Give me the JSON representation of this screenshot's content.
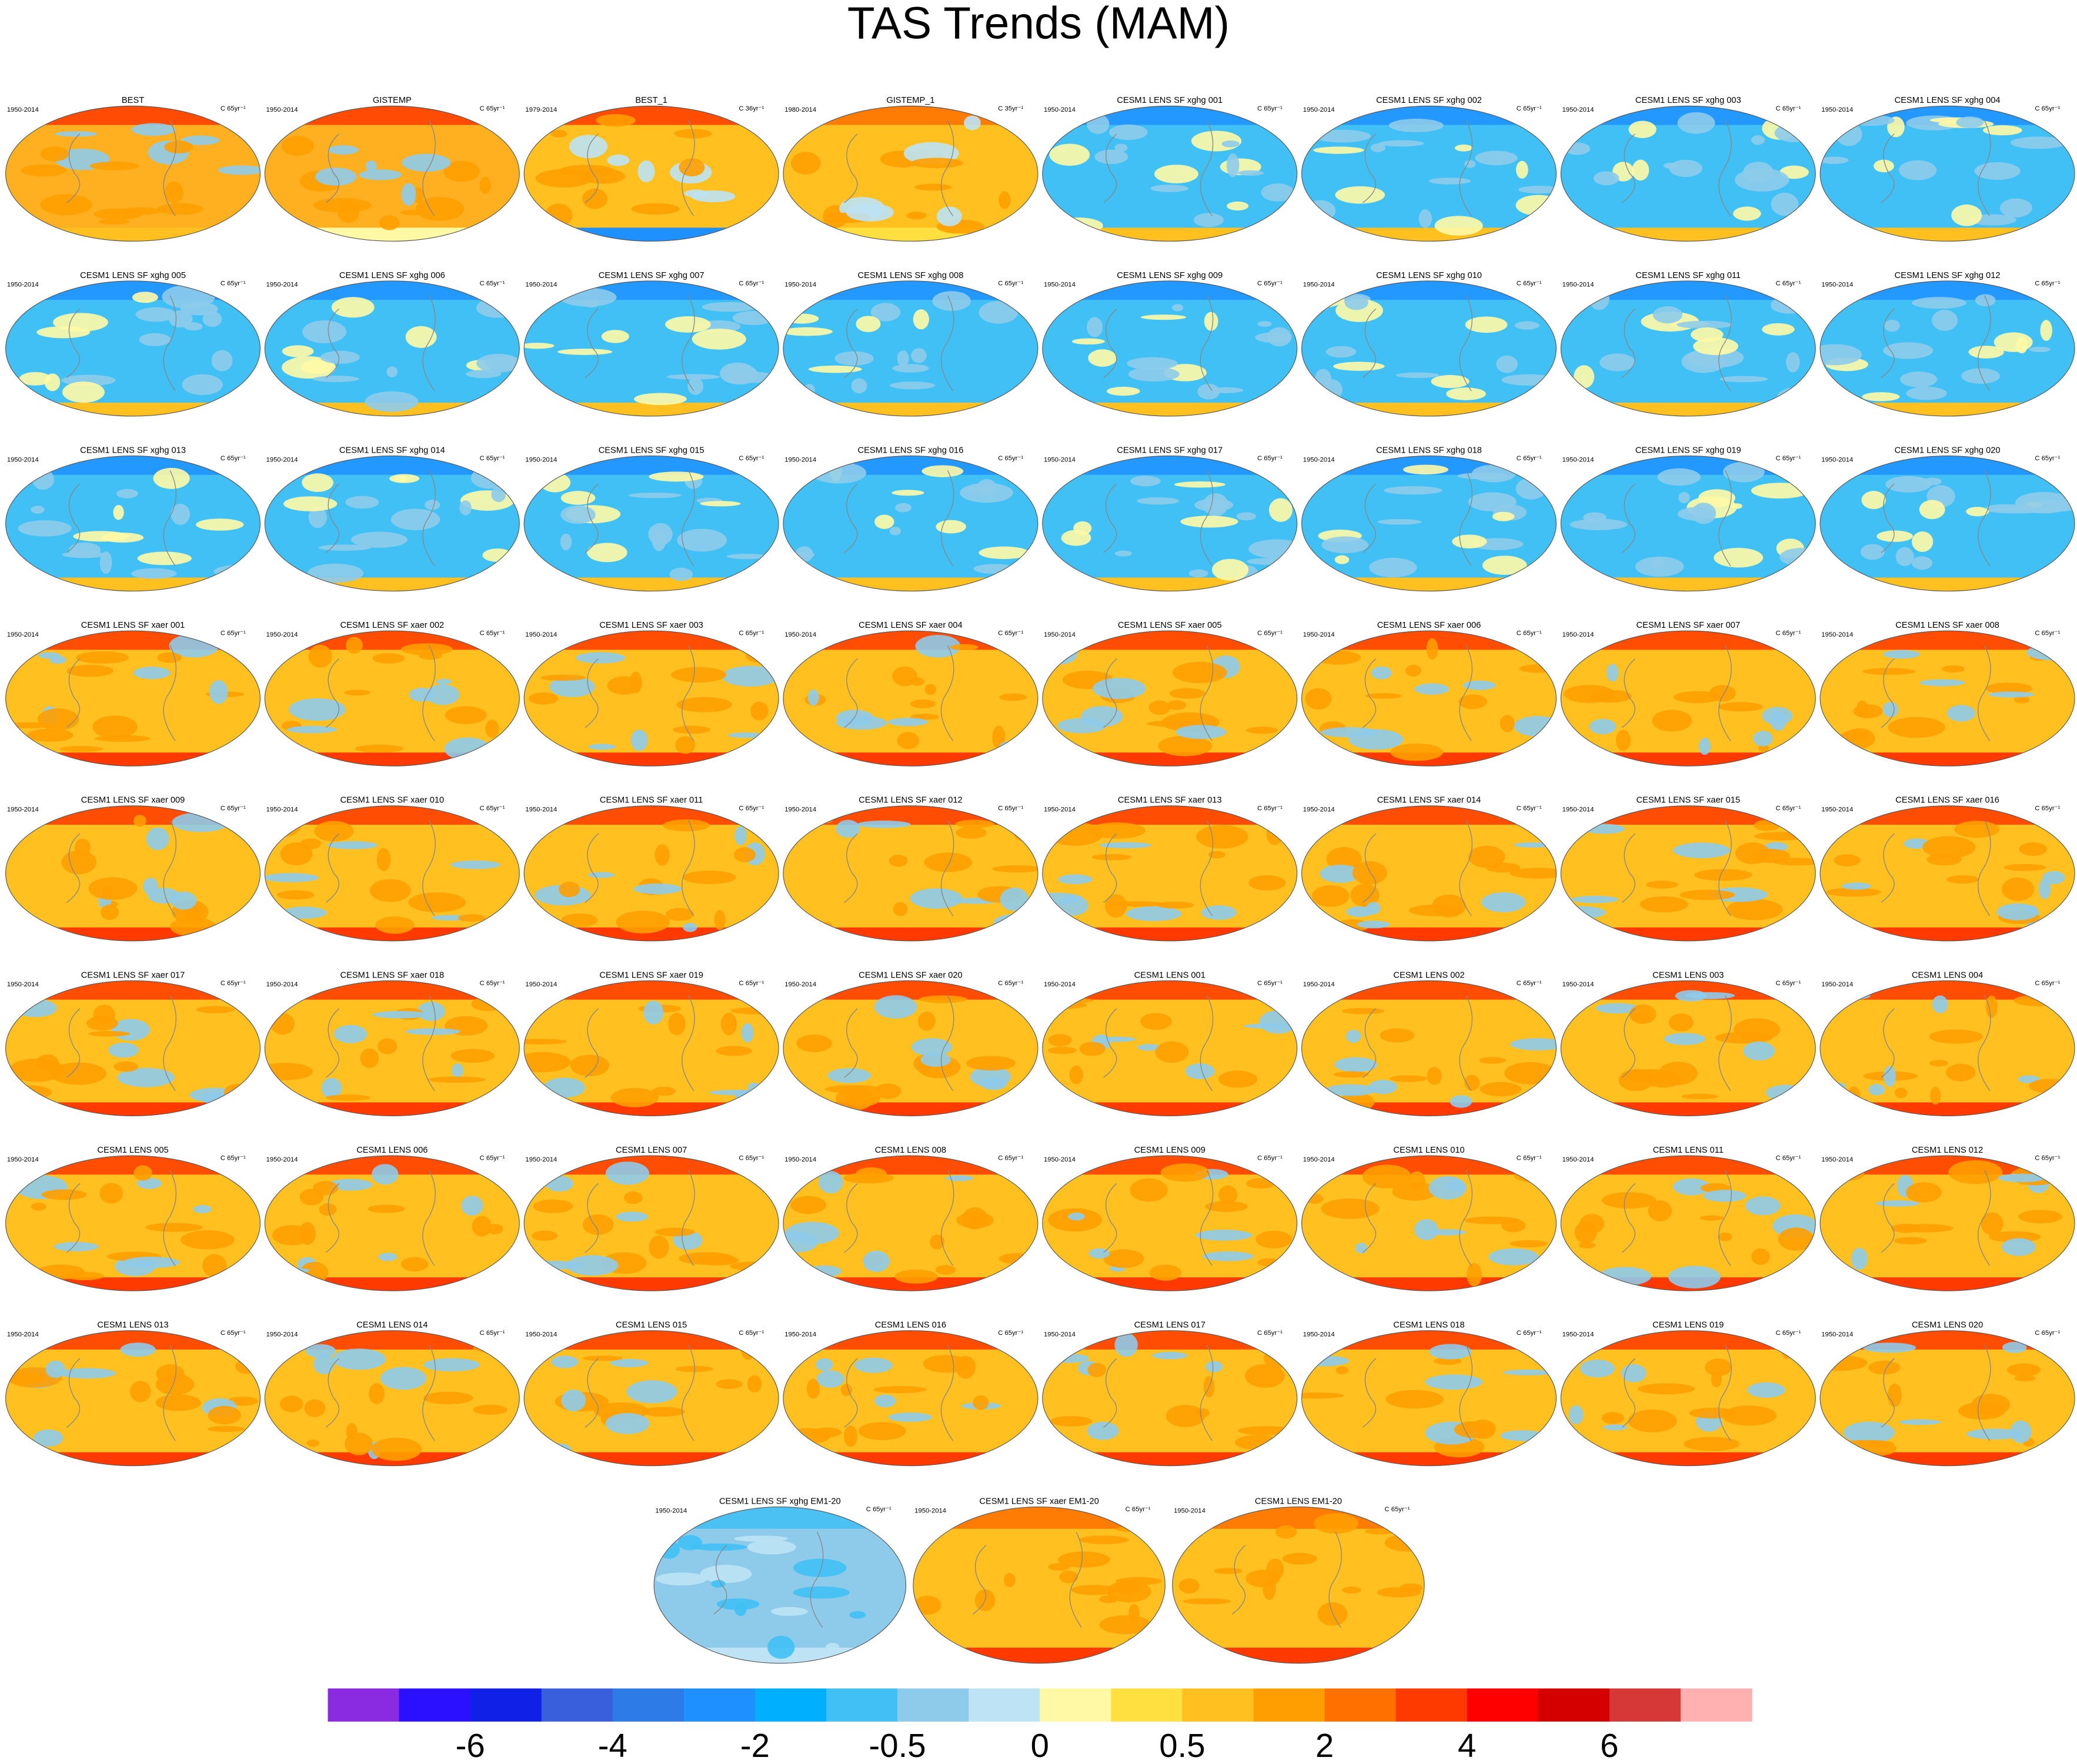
{
  "title": "TAS Trends (MAM)",
  "panels": [
    {
      "title": "BEST",
      "period": "1950-2014",
      "units": "C 65yr⁻¹",
      "colors": [
        "#ffb020",
        "#ff9e00",
        "#ff3a00",
        "#ffc020",
        "#8ecbeb"
      ]
    },
    {
      "title": "GISTEMP",
      "period": "1950-2014",
      "units": "C 65yr⁻¹",
      "colors": [
        "#ffb020",
        "#ff9e00",
        "#ff3a00",
        "#fff9a6",
        "#8ecbeb"
      ]
    },
    {
      "title": "BEST_1",
      "period": "1979-2014",
      "units": "C 36yr⁻¹",
      "colors": [
        "#ffc020",
        "#ff9e00",
        "#ff3a00",
        "#1e90ff",
        "#bde3f5"
      ]
    },
    {
      "title": "GISTEMP_1",
      "period": "1980-2014",
      "units": "C 35yr⁻¹",
      "colors": [
        "#ffc020",
        "#ff9e00",
        "#ff7000",
        "#ffe040",
        "#bde3f5"
      ]
    },
    {
      "title": "CESM1 LENS SF xghg 001",
      "period": "1950-2014",
      "units": "C 65yr⁻¹",
      "colors": [
        "#40c0f5",
        "#8ecbeb",
        "#1e90ff",
        "#ffc020",
        "#fff9a6"
      ]
    },
    {
      "title": "CESM1 LENS SF xghg 002",
      "period": "1950-2014",
      "units": "C 65yr⁻¹",
      "colors": [
        "#40c0f5",
        "#8ecbeb",
        "#1e90ff",
        "#ffc020",
        "#fff9a6"
      ]
    },
    {
      "title": "CESM1 LENS SF xghg 003",
      "period": "1950-2014",
      "units": "C 65yr⁻¹",
      "colors": [
        "#40c0f5",
        "#8ecbeb",
        "#1e90ff",
        "#ffc020",
        "#fff9a6"
      ]
    },
    {
      "title": "CESM1 LENS SF xghg 004",
      "period": "1950-2014",
      "units": "C 65yr⁻¹",
      "colors": [
        "#40c0f5",
        "#8ecbeb",
        "#1e90ff",
        "#ffc020",
        "#fff9a6"
      ]
    },
    {
      "title": "CESM1 LENS SF xghg 005",
      "period": "1950-2014",
      "units": "C 65yr⁻¹",
      "colors": [
        "#40c0f5",
        "#8ecbeb",
        "#1e90ff",
        "#ffc020",
        "#fff9a6"
      ]
    },
    {
      "title": "CESM1 LENS SF xghg 006",
      "period": "1950-2014",
      "units": "C 65yr⁻¹",
      "colors": [
        "#40c0f5",
        "#8ecbeb",
        "#1e90ff",
        "#ffc020",
        "#fff9a6"
      ]
    },
    {
      "title": "CESM1 LENS SF xghg 007",
      "period": "1950-2014",
      "units": "C 65yr⁻¹",
      "colors": [
        "#40c0f5",
        "#8ecbeb",
        "#1e90ff",
        "#ffc020",
        "#fff9a6"
      ]
    },
    {
      "title": "CESM1 LENS SF xghg 008",
      "period": "1950-2014",
      "units": "C 65yr⁻¹",
      "colors": [
        "#40c0f5",
        "#8ecbeb",
        "#1e90ff",
        "#ffc020",
        "#fff9a6"
      ]
    },
    {
      "title": "CESM1 LENS SF xghg 009",
      "period": "1950-2014",
      "units": "C 65yr⁻¹",
      "colors": [
        "#40c0f5",
        "#8ecbeb",
        "#1e90ff",
        "#ffc020",
        "#fff9a6"
      ]
    },
    {
      "title": "CESM1 LENS SF xghg 010",
      "period": "1950-2014",
      "units": "C 65yr⁻¹",
      "colors": [
        "#40c0f5",
        "#8ecbeb",
        "#1e90ff",
        "#ffc020",
        "#fff9a6"
      ]
    },
    {
      "title": "CESM1 LENS SF xghg 011",
      "period": "1950-2014",
      "units": "C 65yr⁻¹",
      "colors": [
        "#40c0f5",
        "#8ecbeb",
        "#1e90ff",
        "#ffc020",
        "#fff9a6"
      ]
    },
    {
      "title": "CESM1 LENS SF xghg 012",
      "period": "1950-2014",
      "units": "C 65yr⁻¹",
      "colors": [
        "#40c0f5",
        "#8ecbeb",
        "#1e90ff",
        "#ffc020",
        "#fff9a6"
      ]
    },
    {
      "title": "CESM1 LENS SF xghg 013",
      "period": "1950-2014",
      "units": "C 65yr⁻¹",
      "colors": [
        "#40c0f5",
        "#8ecbeb",
        "#1e90ff",
        "#ffc020",
        "#fff9a6"
      ]
    },
    {
      "title": "CESM1 LENS SF xghg 014",
      "period": "1950-2014",
      "units": "C 65yr⁻¹",
      "colors": [
        "#40c0f5",
        "#8ecbeb",
        "#1e90ff",
        "#ffc020",
        "#fff9a6"
      ]
    },
    {
      "title": "CESM1 LENS SF xghg 015",
      "period": "1950-2014",
      "units": "C 65yr⁻¹",
      "colors": [
        "#40c0f5",
        "#8ecbeb",
        "#1e90ff",
        "#ffc020",
        "#fff9a6"
      ]
    },
    {
      "title": "CESM1 LENS SF xghg 016",
      "period": "1950-2014",
      "units": "C 65yr⁻¹",
      "colors": [
        "#40c0f5",
        "#8ecbeb",
        "#1e90ff",
        "#ffc020",
        "#fff9a6"
      ]
    },
    {
      "title": "CESM1 LENS SF xghg 017",
      "period": "1950-2014",
      "units": "C 65yr⁻¹",
      "colors": [
        "#40c0f5",
        "#8ecbeb",
        "#1e90ff",
        "#ffc020",
        "#fff9a6"
      ]
    },
    {
      "title": "CESM1 LENS SF xghg 018",
      "period": "1950-2014",
      "units": "C 65yr⁻¹",
      "colors": [
        "#40c0f5",
        "#8ecbeb",
        "#1e90ff",
        "#ffc020",
        "#fff9a6"
      ]
    },
    {
      "title": "CESM1 LENS SF xghg 019",
      "period": "1950-2014",
      "units": "C 65yr⁻¹",
      "colors": [
        "#40c0f5",
        "#8ecbeb",
        "#1e90ff",
        "#ffc020",
        "#fff9a6"
      ]
    },
    {
      "title": "CESM1 LENS SF xghg 020",
      "period": "1950-2014",
      "units": "C 65yr⁻¹",
      "colors": [
        "#40c0f5",
        "#8ecbeb",
        "#1e90ff",
        "#ffc020",
        "#fff9a6"
      ]
    },
    {
      "title": "CESM1 LENS SF xaer 001",
      "period": "1950-2014",
      "units": "C 65yr⁻¹",
      "colors": [
        "#ffc020",
        "#ff9e00",
        "#ff3a00",
        "#ff3a00",
        "#8ecbeb"
      ]
    },
    {
      "title": "CESM1 LENS SF xaer 002",
      "period": "1950-2014",
      "units": "C 65yr⁻¹",
      "colors": [
        "#ffc020",
        "#ff9e00",
        "#ff3a00",
        "#ff3a00",
        "#8ecbeb"
      ]
    },
    {
      "title": "CESM1 LENS SF xaer 003",
      "period": "1950-2014",
      "units": "C 65yr⁻¹",
      "colors": [
        "#ffc020",
        "#ff9e00",
        "#ff3a00",
        "#ff3a00",
        "#8ecbeb"
      ]
    },
    {
      "title": "CESM1 LENS SF xaer 004",
      "period": "1950-2014",
      "units": "C 65yr⁻¹",
      "colors": [
        "#ffc020",
        "#ff9e00",
        "#ff3a00",
        "#ff3a00",
        "#8ecbeb"
      ]
    },
    {
      "title": "CESM1 LENS SF xaer 005",
      "period": "1950-2014",
      "units": "C 65yr⁻¹",
      "colors": [
        "#ffc020",
        "#ff9e00",
        "#ff3a00",
        "#ff3a00",
        "#8ecbeb"
      ]
    },
    {
      "title": "CESM1 LENS SF xaer 006",
      "period": "1950-2014",
      "units": "C 65yr⁻¹",
      "colors": [
        "#ffc020",
        "#ff9e00",
        "#ff3a00",
        "#ff3a00",
        "#8ecbeb"
      ]
    },
    {
      "title": "CESM1 LENS SF xaer 007",
      "period": "1950-2014",
      "units": "C 65yr⁻¹",
      "colors": [
        "#ffc020",
        "#ff9e00",
        "#ff3a00",
        "#ff3a00",
        "#8ecbeb"
      ]
    },
    {
      "title": "CESM1 LENS SF xaer 008",
      "period": "1950-2014",
      "units": "C 65yr⁻¹",
      "colors": [
        "#ffc020",
        "#ff9e00",
        "#ff3a00",
        "#ff3a00",
        "#8ecbeb"
      ]
    },
    {
      "title": "CESM1 LENS SF xaer 009",
      "period": "1950-2014",
      "units": "C 65yr⁻¹",
      "colors": [
        "#ffc020",
        "#ff9e00",
        "#ff3a00",
        "#ff3a00",
        "#8ecbeb"
      ]
    },
    {
      "title": "CESM1 LENS SF xaer 010",
      "period": "1950-2014",
      "units": "C 65yr⁻¹",
      "colors": [
        "#ffc020",
        "#ff9e00",
        "#ff3a00",
        "#ff3a00",
        "#8ecbeb"
      ]
    },
    {
      "title": "CESM1 LENS SF xaer 011",
      "period": "1950-2014",
      "units": "C 65yr⁻¹",
      "colors": [
        "#ffc020",
        "#ff9e00",
        "#ff3a00",
        "#ff3a00",
        "#8ecbeb"
      ]
    },
    {
      "title": "CESM1 LENS SF xaer 012",
      "period": "1950-2014",
      "units": "C 65yr⁻¹",
      "colors": [
        "#ffc020",
        "#ff9e00",
        "#ff3a00",
        "#ff3a00",
        "#8ecbeb"
      ]
    },
    {
      "title": "CESM1 LENS SF xaer 013",
      "period": "1950-2014",
      "units": "C 65yr⁻¹",
      "colors": [
        "#ffc020",
        "#ff9e00",
        "#ff3a00",
        "#ff3a00",
        "#8ecbeb"
      ]
    },
    {
      "title": "CESM1 LENS SF xaer 014",
      "period": "1950-2014",
      "units": "C 65yr⁻¹",
      "colors": [
        "#ffc020",
        "#ff9e00",
        "#ff3a00",
        "#ff3a00",
        "#8ecbeb"
      ]
    },
    {
      "title": "CESM1 LENS SF xaer 015",
      "period": "1950-2014",
      "units": "C 65yr⁻¹",
      "colors": [
        "#ffc020",
        "#ff9e00",
        "#ff3a00",
        "#ff3a00",
        "#8ecbeb"
      ]
    },
    {
      "title": "CESM1 LENS SF xaer 016",
      "period": "1950-2014",
      "units": "C 65yr⁻¹",
      "colors": [
        "#ffc020",
        "#ff9e00",
        "#ff3a00",
        "#ff3a00",
        "#8ecbeb"
      ]
    },
    {
      "title": "CESM1 LENS SF xaer 017",
      "period": "1950-2014",
      "units": "C 65yr⁻¹",
      "colors": [
        "#ffc020",
        "#ff9e00",
        "#ff3a00",
        "#ff3a00",
        "#8ecbeb"
      ]
    },
    {
      "title": "CESM1 LENS SF xaer 018",
      "period": "1950-2014",
      "units": "C 65yr⁻¹",
      "colors": [
        "#ffc020",
        "#ff9e00",
        "#ff3a00",
        "#ff3a00",
        "#8ecbeb"
      ]
    },
    {
      "title": "CESM1 LENS SF xaer 019",
      "period": "1950-2014",
      "units": "C 65yr⁻¹",
      "colors": [
        "#ffc020",
        "#ff9e00",
        "#ff3a00",
        "#ff3a00",
        "#8ecbeb"
      ]
    },
    {
      "title": "CESM1 LENS SF xaer 020",
      "period": "1950-2014",
      "units": "C 65yr⁻¹",
      "colors": [
        "#ffc020",
        "#ff9e00",
        "#ff3a00",
        "#ff3a00",
        "#8ecbeb"
      ]
    },
    {
      "title": "CESM1 LENS 001",
      "period": "1950-2014",
      "units": "C 65yr⁻¹",
      "colors": [
        "#ffc020",
        "#ff9e00",
        "#ff3a00",
        "#ff3a00",
        "#8ecbeb"
      ]
    },
    {
      "title": "CESM1 LENS 002",
      "period": "1950-2014",
      "units": "C 65yr⁻¹",
      "colors": [
        "#ffc020",
        "#ff9e00",
        "#ff3a00",
        "#ff3a00",
        "#8ecbeb"
      ]
    },
    {
      "title": "CESM1 LENS 003",
      "period": "1950-2014",
      "units": "C 65yr⁻¹",
      "colors": [
        "#ffc020",
        "#ff9e00",
        "#ff3a00",
        "#ff3a00",
        "#8ecbeb"
      ]
    },
    {
      "title": "CESM1 LENS 004",
      "period": "1950-2014",
      "units": "C 65yr⁻¹",
      "colors": [
        "#ffc020",
        "#ff9e00",
        "#ff3a00",
        "#ff3a00",
        "#8ecbeb"
      ]
    },
    {
      "title": "CESM1 LENS 005",
      "period": "1950-2014",
      "units": "C 65yr⁻¹",
      "colors": [
        "#ffc020",
        "#ff9e00",
        "#ff3a00",
        "#ff3a00",
        "#8ecbeb"
      ]
    },
    {
      "title": "CESM1 LENS 006",
      "period": "1950-2014",
      "units": "C 65yr⁻¹",
      "colors": [
        "#ffc020",
        "#ff9e00",
        "#ff3a00",
        "#ff3a00",
        "#8ecbeb"
      ]
    },
    {
      "title": "CESM1 LENS 007",
      "period": "1950-2014",
      "units": "C 65yr⁻¹",
      "colors": [
        "#ffc020",
        "#ff9e00",
        "#ff3a00",
        "#ff3a00",
        "#8ecbeb"
      ]
    },
    {
      "title": "CESM1 LENS 008",
      "period": "1950-2014",
      "units": "C 65yr⁻¹",
      "colors": [
        "#ffc020",
        "#ff9e00",
        "#ff3a00",
        "#ff3a00",
        "#8ecbeb"
      ]
    },
    {
      "title": "CESM1 LENS 009",
      "period": "1950-2014",
      "units": "C 65yr⁻¹",
      "colors": [
        "#ffc020",
        "#ff9e00",
        "#ff3a00",
        "#ff3a00",
        "#8ecbeb"
      ]
    },
    {
      "title": "CESM1 LENS 010",
      "period": "1950-2014",
      "units": "C 65yr⁻¹",
      "colors": [
        "#ffc020",
        "#ff9e00",
        "#ff3a00",
        "#ff3a00",
        "#8ecbeb"
      ]
    },
    {
      "title": "CESM1 LENS 011",
      "period": "1950-2014",
      "units": "C 65yr⁻¹",
      "colors": [
        "#ffc020",
        "#ff9e00",
        "#ff3a00",
        "#ff3a00",
        "#8ecbeb"
      ]
    },
    {
      "title": "CESM1 LENS 012",
      "period": "1950-2014",
      "units": "C 65yr⁻¹",
      "colors": [
        "#ffc020",
        "#ff9e00",
        "#ff3a00",
        "#ff3a00",
        "#8ecbeb"
      ]
    },
    {
      "title": "CESM1 LENS 013",
      "period": "1950-2014",
      "units": "C 65yr⁻¹",
      "colors": [
        "#ffc020",
        "#ff9e00",
        "#ff3a00",
        "#ff3a00",
        "#8ecbeb"
      ]
    },
    {
      "title": "CESM1 LENS 014",
      "period": "1950-2014",
      "units": "C 65yr⁻¹",
      "colors": [
        "#ffc020",
        "#ff9e00",
        "#ff3a00",
        "#ff3a00",
        "#8ecbeb"
      ]
    },
    {
      "title": "CESM1 LENS 015",
      "period": "1950-2014",
      "units": "C 65yr⁻¹",
      "colors": [
        "#ffc020",
        "#ff9e00",
        "#ff3a00",
        "#ff3a00",
        "#8ecbeb"
      ]
    },
    {
      "title": "CESM1 LENS 016",
      "period": "1950-2014",
      "units": "C 65yr⁻¹",
      "colors": [
        "#ffc020",
        "#ff9e00",
        "#ff3a00",
        "#ff3a00",
        "#8ecbeb"
      ]
    },
    {
      "title": "CESM1 LENS 017",
      "period": "1950-2014",
      "units": "C 65yr⁻¹",
      "colors": [
        "#ffc020",
        "#ff9e00",
        "#ff3a00",
        "#ff3a00",
        "#8ecbeb"
      ]
    },
    {
      "title": "CESM1 LENS 018",
      "period": "1950-2014",
      "units": "C 65yr⁻¹",
      "colors": [
        "#ffc020",
        "#ff9e00",
        "#ff3a00",
        "#ff3a00",
        "#8ecbeb"
      ]
    },
    {
      "title": "CESM1 LENS 019",
      "period": "1950-2014",
      "units": "C 65yr⁻¹",
      "colors": [
        "#ffc020",
        "#ff9e00",
        "#ff3a00",
        "#ff3a00",
        "#8ecbeb"
      ]
    },
    {
      "title": "CESM1 LENS 020",
      "period": "1950-2014",
      "units": "C 65yr⁻¹",
      "colors": [
        "#ffc020",
        "#ff9e00",
        "#ff3a00",
        "#ff3a00",
        "#8ecbeb"
      ]
    },
    {
      "title": "CESM1 LENS SF xghg EM1-20",
      "period": "1950-2014",
      "units": "C 65yr⁻¹",
      "colors": [
        "#8ecbeb",
        "#40c0f5",
        "#40c0f5",
        "#bde3f5",
        "#bde3f5"
      ]
    },
    {
      "title": "CESM1 LENS SF xaer EM1-20",
      "period": "1950-2014",
      "units": "C 65yr⁻¹",
      "colors": [
        "#ffc020",
        "#ff9e00",
        "#ff7000",
        "#ff3a00",
        "#ff9e00"
      ]
    },
    {
      "title": "CESM1 LENS EM1-20",
      "period": "1950-2014",
      "units": "C 65yr⁻¹",
      "colors": [
        "#ffc020",
        "#ff9e00",
        "#ff7000",
        "#ff3a00",
        "#ff9e00"
      ]
    }
  ],
  "colorbar": {
    "colors": [
      "#8a2be2",
      "#2a10ff",
      "#1020e6",
      "#3a5fdc",
      "#2c7be6",
      "#1e90ff",
      "#00b0ff",
      "#40c0f5",
      "#8ecbeb",
      "#bde3f5",
      "#fff9a6",
      "#ffe040",
      "#ffc020",
      "#ff9e00",
      "#ff7000",
      "#ff3a00",
      "#ff0000",
      "#d40000",
      "#d63838",
      "#ffb0b0"
    ],
    "labels": [
      -6,
      -4,
      -2,
      -0.5,
      0,
      0.5,
      2,
      4,
      6
    ]
  }
}
